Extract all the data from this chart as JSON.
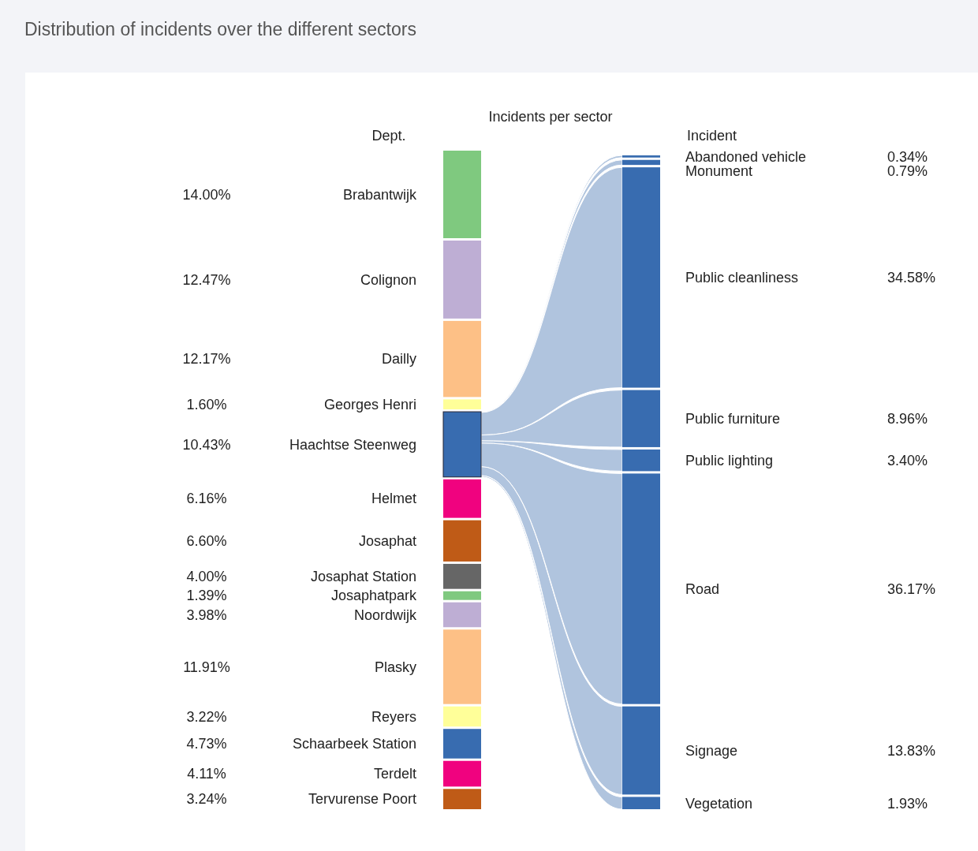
{
  "chart_data": [
    {
      "type": "other",
      "title": "Distribution of incidents over the different sectors",
      "subtitle": "Incidents per sector",
      "xlabel": "Dept.",
      "categories": [
        "Brabantwijk",
        "Colignon",
        "Dailly",
        "Georges Henri",
        "Haachtse Steenweg",
        "Helmet",
        "Josaphat",
        "Josaphat Station",
        "Josaphatpark",
        "Noordwijk",
        "Plasky",
        "Reyers",
        "Schaarbeek Station",
        "Terdelt",
        "Tervurense Poort"
      ],
      "values": [
        14.0,
        12.47,
        12.17,
        1.6,
        10.43,
        6.16,
        6.6,
        4.0,
        1.39,
        3.98,
        11.91,
        3.22,
        4.73,
        4.11,
        3.24
      ],
      "value_labels": [
        "14.00%",
        "12.47%",
        "12.17%",
        "1.60%",
        "10.43%",
        "6.16%",
        "6.60%",
        "4.00%",
        "1.39%",
        "3.98%",
        "11.91%",
        "3.22%",
        "4.73%",
        "4.11%",
        "3.24%"
      ],
      "colors": [
        "#7fc97f",
        "#beaed4",
        "#fdc086",
        "#ffff99",
        "#386cb0",
        "#f0027f",
        "#bf5b17",
        "#666666",
        "#7fc97f",
        "#beaed4",
        "#fdc086",
        "#ffff99",
        "#386cb0",
        "#f0027f",
        "#bf5b17"
      ]
    },
    {
      "type": "other",
      "xlabel": "Incident",
      "categories": [
        "Abandoned vehicle",
        "Monument",
        "Public cleanliness",
        "Public furniture",
        "Public lighting",
        "Road",
        "Signage",
        "Vegetation"
      ],
      "values": [
        0.34,
        0.79,
        34.58,
        8.96,
        3.4,
        36.17,
        13.83,
        1.93
      ],
      "value_labels": [
        "0.34%",
        "0.79%",
        "34.58%",
        "8.96%",
        "3.40%",
        "36.17%",
        "13.83%",
        "1.93%"
      ],
      "colors": [
        "#386cb0",
        "#386cb0",
        "#386cb0",
        "#386cb0",
        "#386cb0",
        "#386cb0",
        "#386cb0",
        "#386cb0"
      ]
    }
  ]
}
